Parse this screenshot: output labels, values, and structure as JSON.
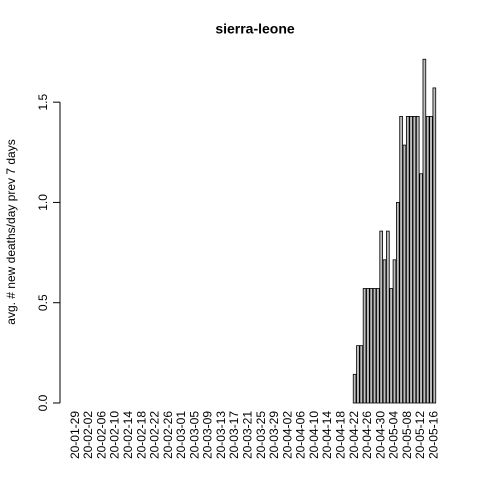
{
  "chart_data": {
    "type": "bar",
    "title": "sierra-leone",
    "y_label": "avg. # new deaths/day prev  7  days",
    "categories": [
      "20-01-29",
      null,
      null,
      null,
      "20-02-02",
      null,
      null,
      null,
      "20-02-06",
      null,
      null,
      null,
      "20-02-10",
      null,
      null,
      null,
      "20-02-14",
      null,
      null,
      null,
      "20-02-18",
      null,
      null,
      null,
      "20-02-22",
      null,
      null,
      null,
      "20-02-26",
      null,
      null,
      null,
      "20-03-01",
      null,
      null,
      null,
      "20-03-05",
      null,
      null,
      null,
      "20-03-09",
      null,
      null,
      null,
      "20-03-13",
      null,
      null,
      null,
      "20-03-17",
      null,
      null,
      null,
      "20-03-21",
      null,
      null,
      null,
      "20-03-25",
      null,
      null,
      null,
      "20-03-29",
      null,
      null,
      null,
      "20-04-02",
      null,
      null,
      null,
      "20-04-06",
      null,
      null,
      null,
      "20-04-10",
      null,
      null,
      null,
      "20-04-14",
      null,
      null,
      null,
      "20-04-18",
      null,
      null,
      null,
      "20-04-22",
      null,
      null,
      null,
      "20-04-26",
      null,
      null,
      null,
      "20-04-30",
      null,
      null,
      null,
      "20-05-04",
      null,
      null,
      null,
      "20-05-08",
      null,
      null,
      null,
      "20-05-12",
      null,
      null,
      null,
      "20-05-16"
    ],
    "values": [
      0,
      0,
      0,
      0,
      0,
      0,
      0,
      0,
      0,
      0,
      0,
      0,
      0,
      0,
      0,
      0,
      0,
      0,
      0,
      0,
      0,
      0,
      0,
      0,
      0,
      0,
      0,
      0,
      0,
      0,
      0,
      0,
      0,
      0,
      0,
      0,
      0,
      0,
      0,
      0,
      0,
      0,
      0,
      0,
      0,
      0,
      0,
      0,
      0,
      0,
      0,
      0,
      0,
      0,
      0,
      0,
      0,
      0,
      0,
      0,
      0,
      0,
      0,
      0,
      0,
      0,
      0,
      0,
      0,
      0,
      0,
      0,
      0,
      0,
      0,
      0,
      0,
      0,
      0,
      0,
      0,
      0,
      0,
      0,
      0.143,
      0.286,
      0.286,
      0.571,
      0.571,
      0.571,
      0.571,
      0.571,
      0.857,
      0.714,
      0.857,
      0.571,
      0.714,
      1.0,
      1.429,
      1.286,
      1.429,
      1.429,
      1.429,
      1.429,
      1.143,
      1.714,
      1.429,
      1.429,
      1.571
    ],
    "color": "#bebebe",
    "ylim": [
      0,
      1.78
    ],
    "yticks": [
      {
        "value": 0,
        "label": "0.0"
      },
      {
        "value": 0.5,
        "label": "0.5"
      },
      {
        "value": 1,
        "label": "1.0"
      },
      {
        "value": 1.5,
        "label": "1.5"
      }
    ]
  }
}
